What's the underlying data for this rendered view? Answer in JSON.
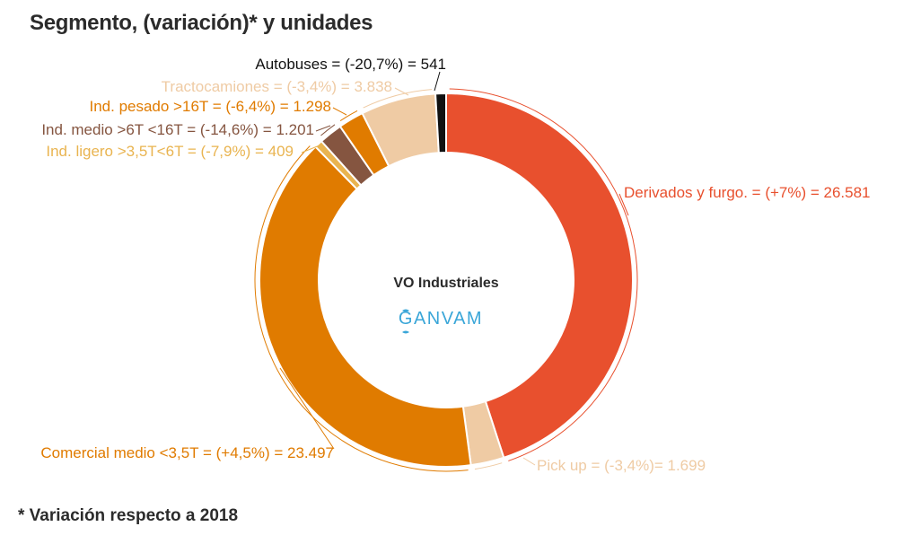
{
  "title": "Segmento, (variación)* y unidades",
  "footnote": "* Variación respecto a 2018",
  "center_label": "VO Industriales",
  "logo_text": "GANVAM",
  "chart_data": {
    "type": "pie",
    "donut": true,
    "title": "Segmento, (variación)* y unidades",
    "center_label": "VO Industriales",
    "legend": "none",
    "slices": [
      {
        "label": "Derivados y furgo. = (+7%) = 26.581",
        "segment": "Derivados y furgo.",
        "change_pct": 7,
        "value": 26581,
        "color": "#e8502e"
      },
      {
        "label": "Pick up = (-3,4%)= 1.699",
        "segment": "Pick up",
        "change_pct": -3.4,
        "value": 1699,
        "color": "#efcba4"
      },
      {
        "label": "Comercial medio <3,5T = (+4,5%) = 23.497",
        "segment": "Comercial medio <3,5T",
        "change_pct": 4.5,
        "value": 23497,
        "color": "#e07b00"
      },
      {
        "label": "Ind. ligero >3,5T<6T = (-7,9%) = 409",
        "segment": "Ind. ligero >3,5T<6T",
        "change_pct": -7.9,
        "value": 409,
        "color": "#e9b450"
      },
      {
        "label": "Ind. medio >6T <16T = (-14,6%) = 1.201",
        "segment": "Ind. medio >6T <16T",
        "change_pct": -14.6,
        "value": 1201,
        "color": "#855540"
      },
      {
        "label": "Ind. pesado >16T = (-6,4%) = 1.298",
        "segment": "Ind. pesado >16T",
        "change_pct": -6.4,
        "value": 1298,
        "color": "#e07b00"
      },
      {
        "label": "Tractocamiones = (-3,4%) = 3.838",
        "segment": "Tractocamiones",
        "change_pct": -3.4,
        "value": 3838,
        "color": "#efcba4"
      },
      {
        "label": "Autobuses = (-20,7%) = 541",
        "segment": "Autobuses",
        "change_pct": -20.7,
        "value": 541,
        "color": "#111111"
      }
    ]
  }
}
